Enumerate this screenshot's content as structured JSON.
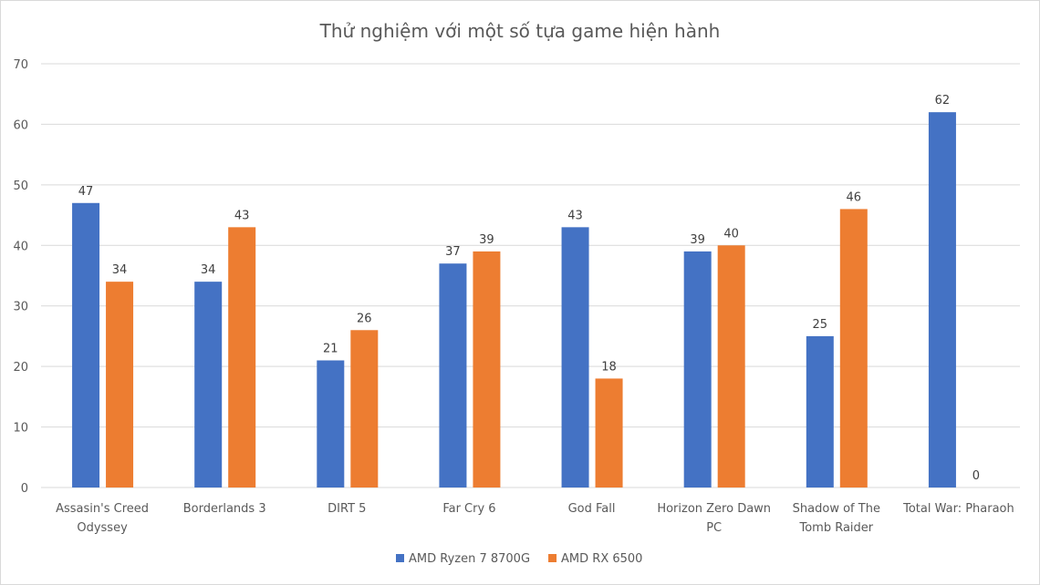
{
  "chart_data": {
    "type": "bar",
    "title": "Thử nghiệm với một số tựa game hiện hành",
    "categories": [
      [
        "Assasin's Creed",
        "Odyssey"
      ],
      [
        "Borderlands 3"
      ],
      [
        "DIRT 5"
      ],
      [
        "Far Cry 6"
      ],
      [
        "God Fall"
      ],
      [
        "Horizon Zero Dawn",
        "PC"
      ],
      [
        "Shadow of The",
        "Tomb Raider"
      ],
      [
        "Total War: Pharaoh"
      ]
    ],
    "series": [
      {
        "name": "AMD Ryzen 7 8700G",
        "color": "#4472C4",
        "values": [
          47,
          34,
          21,
          37,
          43,
          39,
          25,
          62
        ]
      },
      {
        "name": "AMD RX 6500",
        "color": "#ED7D31",
        "values": [
          34,
          43,
          26,
          39,
          18,
          40,
          46,
          0
        ]
      }
    ],
    "ylim": [
      0,
      70
    ],
    "yticks": [
      0,
      10,
      20,
      30,
      40,
      50,
      60,
      70
    ],
    "grid": true,
    "legend": "bottom",
    "data_labels": true
  }
}
